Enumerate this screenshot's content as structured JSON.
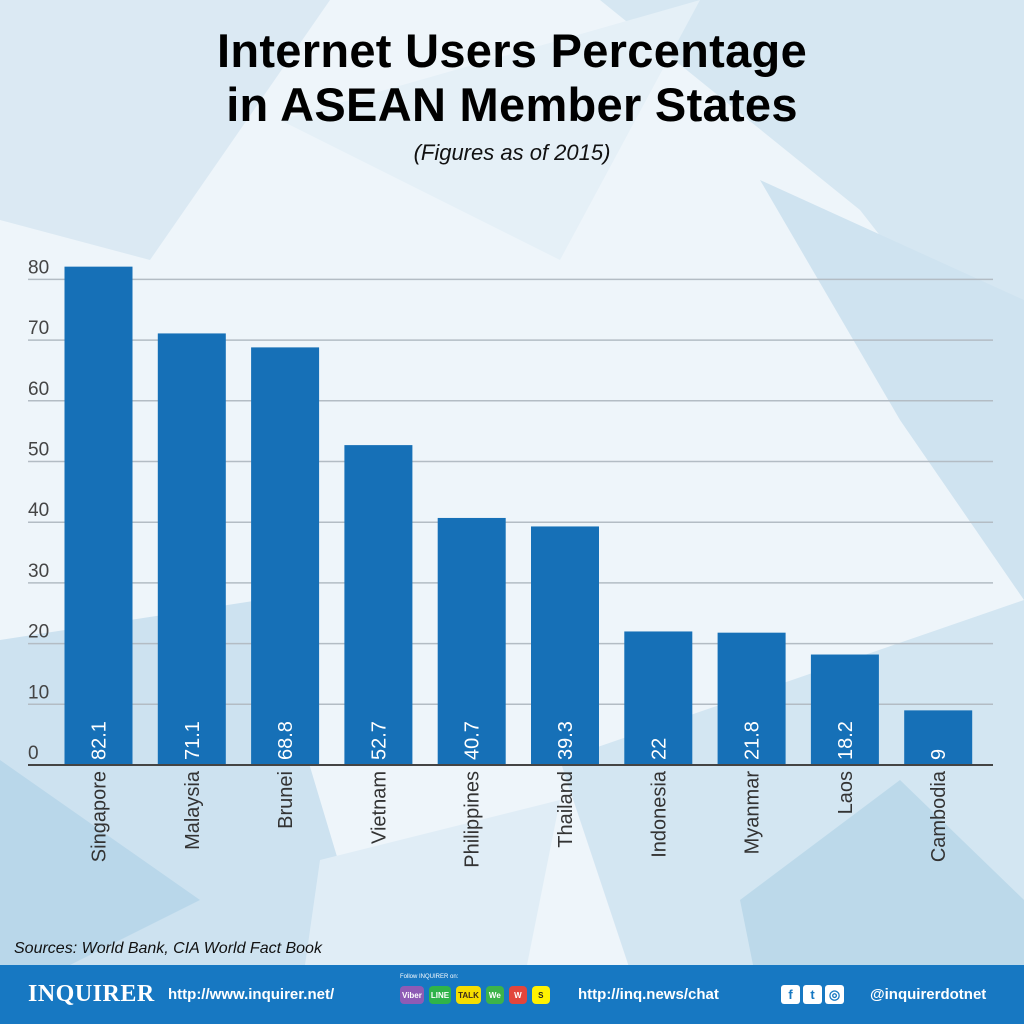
{
  "chart_data": {
    "type": "bar",
    "title": "Internet Users Percentage in ASEAN Member States",
    "title_lines": [
      "Internet Users Percentage",
      "in ASEAN Member States"
    ],
    "subtitle": "(Figures as of 2015)",
    "categories": [
      "Singapore",
      "Malaysia",
      "Brunei",
      "Vietnam",
      "Philippines",
      "Thailand",
      "Indonesia",
      "Myanmar",
      "Laos",
      "Cambodia"
    ],
    "values": [
      82.1,
      71.1,
      68.8,
      52.7,
      40.7,
      39.3,
      22,
      21.8,
      18.2,
      9
    ],
    "value_labels": [
      "82.1",
      "71.1",
      "68.8",
      "52.7",
      "40.7",
      "39.3",
      "22",
      "21.8",
      "18.2",
      "9"
    ],
    "yticks": [
      0,
      10,
      20,
      30,
      40,
      50,
      60,
      70,
      80
    ],
    "ylim": [
      0,
      82.5
    ],
    "xlabel": "",
    "ylabel": "",
    "grid": true,
    "bar_color": "#1670b7"
  },
  "source": "Sources: World Bank, CIA World Fact Book",
  "footer": {
    "brand": "INQUIRER",
    "url": "http://www.inquirer.net/",
    "follow_text": "Follow INQUIRER on:",
    "apps": [
      {
        "name": "viber-icon",
        "label": "Viber",
        "bg": "#8e5bb5",
        "fg": "#ffffff"
      },
      {
        "name": "line-icon",
        "label": "LINE",
        "bg": "#2fb34a",
        "fg": "#ffffff"
      },
      {
        "name": "kakaotalk-icon",
        "label": "TALK",
        "bg": "#f5dd00",
        "fg": "#3b2a1a"
      },
      {
        "name": "wechat-icon",
        "label": "We",
        "bg": "#3cb34a",
        "fg": "#ffffff"
      },
      {
        "name": "weibo-icon",
        "label": "W",
        "bg": "#e2453c",
        "fg": "#ffffff"
      },
      {
        "name": "snapchat-icon",
        "label": "S",
        "bg": "#fff200",
        "fg": "#222222"
      }
    ],
    "chat_url": "http://inq.news/chat",
    "socials": [
      {
        "name": "facebook-icon",
        "glyph": "f"
      },
      {
        "name": "twitter-icon",
        "glyph": "t"
      },
      {
        "name": "instagram-icon",
        "glyph": "◎"
      }
    ],
    "handle": "@inquirerdotnet"
  }
}
